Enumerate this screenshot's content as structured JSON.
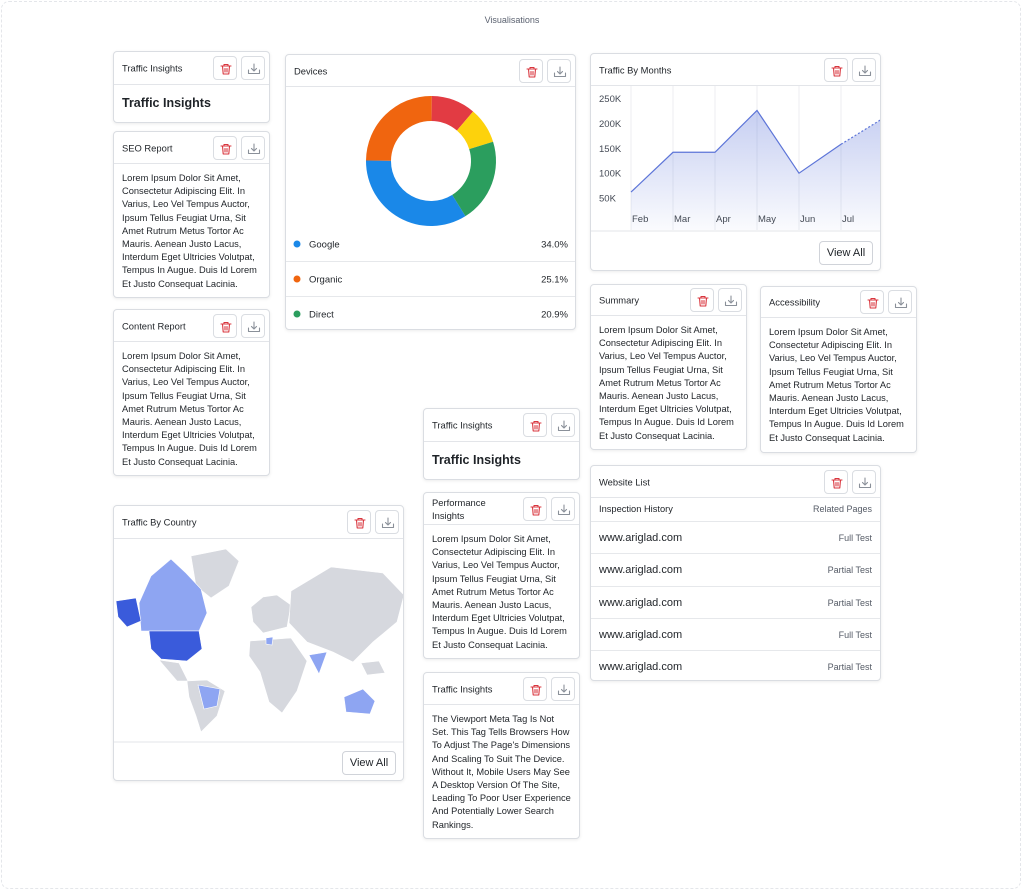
{
  "page_title": "Visualisations",
  "cards": [
    {
      "title": "Traffic Insights",
      "heading": "Traffic Insights"
    },
    {
      "title": "SEO Report",
      "text": "Lorem Ipsum Dolor Sit Amet, Consectetur Adipiscing Elit. In Varius, Leo Vel Tempus Auctor, Ipsum Tellus Feugiat Urna, Sit Amet Rutrum Metus Tortor Ac Mauris. Aenean Justo Lacus, Interdum Eget Ultricies Volutpat, Tempus In Augue. Duis Id Lorem Et Justo Consequat Lacinia."
    },
    {
      "title": "Content Report",
      "text": "Lorem Ipsum Dolor Sit Amet, Consectetur Adipiscing Elit. In Varius, Leo Vel Tempus Auctor, Ipsum Tellus Feugiat Urna, Sit Amet Rutrum Metus Tortor Ac Mauris. Aenean Justo Lacus, Interdum Eget Ultricies Volutpat, Tempus In Augue. Duis Id Lorem Et Justo Consequat Lacinia."
    },
    {
      "title": "Summary",
      "text": "Lorem Ipsum Dolor Sit Amet, Consectetur Adipiscing Elit. In Varius, Leo Vel Tempus Auctor, Ipsum Tellus Feugiat Urna, Sit Amet Rutrum Metus Tortor Ac Mauris. Aenean Justo Lacus, Interdum Eget Ultricies Volutpat, Tempus In Augue. Duis Id Lorem Et Justo Consequat Lacinia."
    },
    {
      "title": "Accessibility",
      "text": "Lorem Ipsum Dolor Sit Amet, Consectetur Adipiscing Elit. In Varius, Leo Vel Tempus Auctor, Ipsum Tellus Feugiat Urna, Sit Amet Rutrum Metus Tortor Ac Mauris. Aenean Justo Lacus, Interdum Eget Ultricies Volutpat, Tempus In Augue. Duis Id Lorem Et Justo Consequat Lacinia."
    },
    {
      "title": "Traffic Insights",
      "heading": "Traffic Insights"
    },
    {
      "title": "Performance Insights",
      "text": "Lorem Ipsum Dolor Sit Amet, Consectetur Adipiscing Elit. In Varius, Leo Vel Tempus Auctor, Ipsum Tellus Feugiat Urna, Sit Amet Rutrum Metus Tortor Ac Mauris. Aenean Justo Lacus, Interdum Eget Ultricies Volutpat, Tempus In Augue. Duis Id Lorem Et Justo Consequat Lacinia."
    },
    {
      "title": "Traffic Insights",
      "text": "The Viewport Meta Tag Is Not Set. This Tag Tells Browsers How To Adjust The Page's Dimensions And Scaling To Suit The Device. Without It, Mobile Users May See A Desktop Version Of The Site, Leading To Poor User Experience And Potentially Lower Search Rankings."
    }
  ],
  "chart_data": [
    {
      "type": "pie",
      "title": "Devices",
      "categories": [
        "Google",
        "Organic",
        null,
        null,
        "Direct"
      ],
      "values": [
        34.0,
        25.1,
        11,
        9,
        20.9
      ],
      "value_labels": [
        "34.0%",
        "25.1%",
        null,
        null,
        "20.9%"
      ],
      "colors": [
        "#1a88e8",
        "#f0650f",
        "#e23b43",
        "#fdd20c",
        "#2b9e5e"
      ]
    },
    {
      "type": "line",
      "title": "Traffic By Months",
      "categories": [
        "Feb",
        "Mar",
        "Apr",
        "May",
        "Jun",
        "Jul",
        null
      ],
      "values": [
        62000,
        142000,
        142000,
        226000,
        100000,
        158000,
        210000
      ],
      "ylim": [
        0,
        275000
      ],
      "yticks": [
        {
          "value": 50000,
          "label": "50K"
        },
        {
          "value": 100000,
          "label": "100K"
        },
        {
          "value": 150000,
          "label": "150K"
        },
        {
          "value": 200000,
          "label": "200K"
        },
        {
          "value": 250000,
          "label": "250K"
        }
      ],
      "color": "#5d75d8",
      "grid": "x"
    }
  ],
  "months_button": "View All",
  "website_list": {
    "title": "Website List",
    "columns": [
      "Inspection History",
      "Related Pages"
    ],
    "rows": [
      [
        "www.ariglad.com",
        "Full Test"
      ],
      [
        "www.ariglad.com",
        "Partial Test"
      ],
      [
        "www.ariglad.com",
        "Partial Test"
      ],
      [
        "www.ariglad.com",
        "Full Test"
      ],
      [
        "www.ariglad.com",
        "Partial Test"
      ]
    ]
  },
  "traffic_by_country": {
    "title": "Traffic By Country",
    "button": "View All"
  }
}
